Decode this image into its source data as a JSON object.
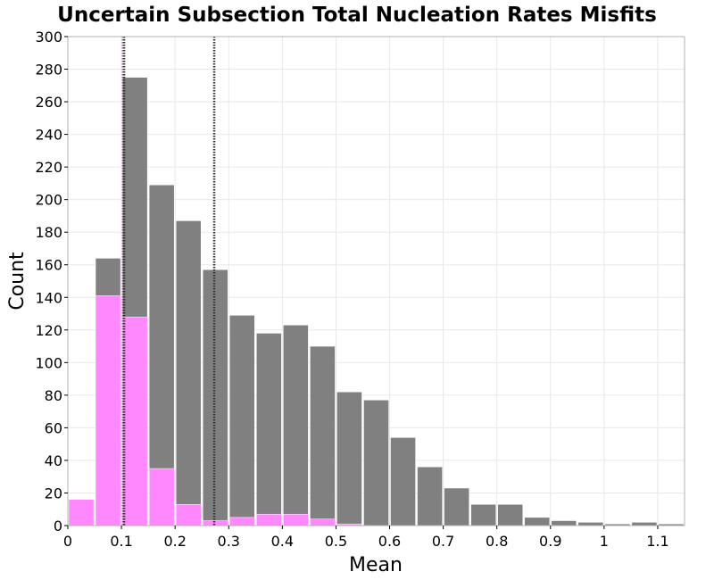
{
  "chart_data": {
    "type": "bar",
    "title": "Uncertain Subsection Total Nucleation Rates Misfits",
    "xlabel": "Mean",
    "ylabel": "Count",
    "xlim": [
      0,
      1.15
    ],
    "ylim": [
      0,
      300
    ],
    "bin_width": 0.05,
    "x_ticks": [
      "0",
      "0.1",
      "0.2",
      "0.3",
      "0.4",
      "0.5",
      "0.6",
      "0.7",
      "0.8",
      "0.9",
      "1",
      "1.1"
    ],
    "y_ticks": [
      "0",
      "20",
      "40",
      "60",
      "80",
      "100",
      "120",
      "140",
      "160",
      "180",
      "200",
      "220",
      "240",
      "260",
      "280",
      "300"
    ],
    "grid": true,
    "series": [
      {
        "color": "#808080",
        "bin_start": [
          0.0,
          0.05,
          0.1,
          0.15,
          0.2,
          0.25,
          0.3,
          0.35,
          0.4,
          0.45,
          0.5,
          0.55,
          0.6,
          0.65,
          0.7,
          0.75,
          0.8,
          0.85,
          0.9,
          0.95,
          1.0,
          1.05,
          1.1
        ],
        "values": [
          0,
          164,
          275,
          209,
          187,
          157,
          129,
          118,
          123,
          110,
          82,
          77,
          54,
          36,
          23,
          13,
          13,
          5,
          3,
          2,
          1,
          2,
          1
        ]
      },
      {
        "color": "#ff88ff",
        "bin_start": [
          0.0,
          0.05,
          0.1,
          0.15,
          0.2,
          0.25,
          0.3,
          0.35,
          0.4,
          0.45,
          0.5,
          0.55,
          0.6,
          0.65,
          0.7,
          0.75,
          0.8,
          0.85,
          0.9,
          0.95,
          1.0,
          1.05,
          1.1
        ],
        "values": [
          16,
          141,
          128,
          35,
          13,
          3,
          5,
          7,
          7,
          4,
          1,
          0,
          0,
          0,
          0,
          0,
          0,
          0,
          0,
          0,
          0,
          0,
          0
        ]
      }
    ],
    "vlines": [
      {
        "x": 0.103,
        "color": "#d040d0"
      },
      {
        "x": 0.105,
        "color": "#333333"
      },
      {
        "x": 0.273,
        "color": "#333333"
      }
    ]
  }
}
